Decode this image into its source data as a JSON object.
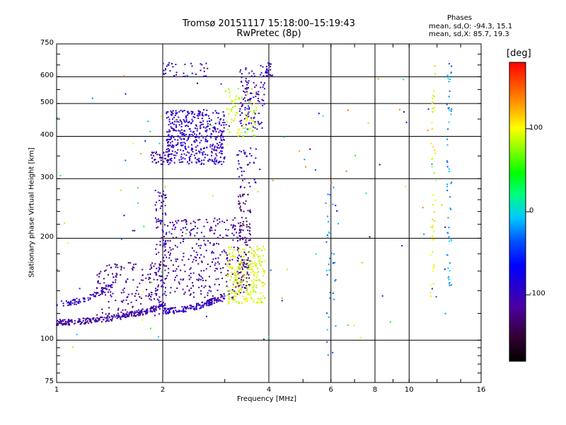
{
  "header": {
    "title": "Tromsø 20151117 15:18:00–15:19:43",
    "subtitle": "RwPretec (8p)"
  },
  "stats": {
    "heading": "Phases",
    "o_line": "mean, sd,O: -94.3, 15.1",
    "x_line": "mean, sd,X:  85.7, 19.3"
  },
  "colorbar": {
    "unit": "[deg]",
    "ticks": [
      "100",
      "0",
      "-100"
    ],
    "tick_values": [
      100,
      0,
      -100
    ],
    "range": [
      -180,
      180
    ]
  },
  "chart_data": {
    "type": "scatter",
    "xlabel": "Frequency [MHz]",
    "ylabel": "Stationary phase Virtual Height [km]",
    "x_scale": "log",
    "y_scale": "log",
    "xlim": [
      1,
      16
    ],
    "ylim": [
      75,
      750
    ],
    "x_ticks": [
      "1",
      "2",
      "4",
      "6",
      "8",
      "10",
      "16"
    ],
    "x_tick_values": [
      1,
      2,
      4,
      6,
      8,
      10,
      16
    ],
    "y_ticks": [
      "750",
      "600",
      "500",
      "400",
      "300",
      "200",
      "100",
      "75"
    ],
    "y_tick_values": [
      750,
      600,
      500,
      400,
      300,
      200,
      100,
      75
    ],
    "grid": true,
    "clusters": [
      {
        "name": "",
        "fmin": 1.0,
        "fmax": 1.45,
        "hmin": 128,
        "hmax": 147,
        "phase": -100,
        "n": 90,
        "shape": "rising"
      },
      {
        "name": "",
        "fmin": 1.0,
        "fmax": 2.0,
        "hmin": 113,
        "hmax": 126,
        "phase": -110,
        "n": 260,
        "shape": "rising"
      },
      {
        "name": "",
        "fmin": 1.3,
        "fmax": 2.0,
        "hmin": 118,
        "hmax": 170,
        "phase": -120,
        "n": 160,
        "shape": "cloud"
      },
      {
        "name": "",
        "fmin": 1.9,
        "fmax": 2.05,
        "hmin": 125,
        "hmax": 280,
        "phase": -105,
        "n": 110,
        "shape": "cloud"
      },
      {
        "name": "",
        "fmin": 2.0,
        "fmax": 3.0,
        "hmin": 122,
        "hmax": 135,
        "phase": -100,
        "n": 160,
        "shape": "rising"
      },
      {
        "name": "",
        "fmin": 2.0,
        "fmax": 3.4,
        "hmin": 130,
        "hmax": 230,
        "phase": -115,
        "n": 330,
        "shape": "cloud"
      },
      {
        "name": "",
        "fmin": 3.25,
        "fmax": 3.55,
        "hmin": 140,
        "hmax": 270,
        "phase": -130,
        "n": 120,
        "shape": "cloud"
      },
      {
        "name": "",
        "fmin": 3.05,
        "fmax": 3.9,
        "hmin": 128,
        "hmax": 190,
        "phase": 95,
        "n": 240,
        "shape": "cloud"
      },
      {
        "name": "",
        "fmin": 2.05,
        "fmax": 3.0,
        "hmin": 330,
        "hmax": 480,
        "phase": -95,
        "n": 460,
        "shape": "cloud"
      },
      {
        "name": "",
        "fmin": 1.85,
        "fmax": 2.1,
        "hmin": 330,
        "hmax": 360,
        "phase": -110,
        "n": 40,
        "shape": "cloud"
      },
      {
        "name": "",
        "fmin": 2.0,
        "fmax": 2.7,
        "hmin": 600,
        "hmax": 660,
        "phase": -110,
        "n": 40,
        "shape": "cloud"
      },
      {
        "name": "",
        "fmin": 3.0,
        "fmax": 3.7,
        "hmin": 400,
        "hmax": 560,
        "phase": 90,
        "n": 90,
        "shape": "cloud"
      },
      {
        "name": "",
        "fmin": 3.3,
        "fmax": 3.9,
        "hmin": 420,
        "hmax": 650,
        "phase": -100,
        "n": 110,
        "shape": "cloud"
      },
      {
        "name": "",
        "fmin": 3.25,
        "fmax": 3.7,
        "hmin": 280,
        "hmax": 370,
        "phase": -105,
        "n": 40,
        "shape": "cloud"
      },
      {
        "name": "",
        "fmin": 3.9,
        "fmax": 4.1,
        "hmin": 600,
        "hmax": 660,
        "phase": -100,
        "n": 25,
        "shape": "cloud"
      },
      {
        "name": "",
        "fmin": 11.5,
        "fmax": 11.9,
        "hmin": 130,
        "hmax": 680,
        "phase": 100,
        "n": 45,
        "shape": "cloud"
      },
      {
        "name": "",
        "fmin": 12.8,
        "fmax": 13.2,
        "hmin": 140,
        "hmax": 680,
        "phase": -20,
        "n": 55,
        "shape": "cloud"
      },
      {
        "name": "",
        "fmin": 5.8,
        "fmax": 6.2,
        "hmin": 90,
        "hmax": 300,
        "phase": -20,
        "n": 35,
        "shape": "cloud"
      },
      {
        "name": "",
        "fmin": 1.0,
        "fmax": 13.0,
        "hmin": 90,
        "hmax": 640,
        "phase": 0,
        "n": 110,
        "shape": "scatter"
      }
    ]
  }
}
